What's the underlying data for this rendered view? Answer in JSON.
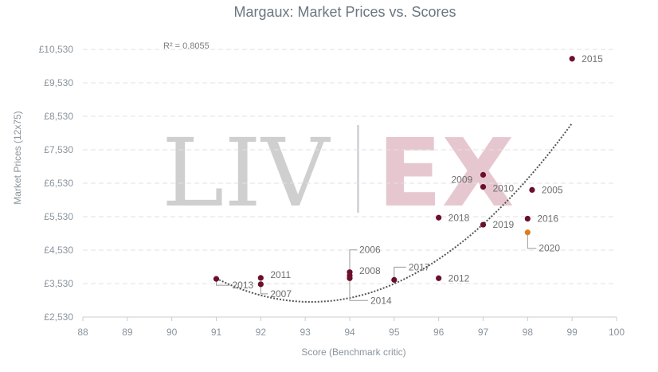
{
  "chart_data": {
    "type": "scatter",
    "title": "Margaux: Market Prices vs. Scores",
    "xlabel": "Score (Benchmark critic)",
    "ylabel": "Market Prices (12x75)",
    "xlim": [
      88,
      100
    ],
    "ylim": [
      2530,
      10530
    ],
    "x_ticks": [
      "88",
      "89",
      "90",
      "91",
      "92",
      "93",
      "94",
      "95",
      "96",
      "97",
      "98",
      "99",
      "100"
    ],
    "y_ticks": [
      "£2,530",
      "£3,530",
      "£4,530",
      "£5,530",
      "£6,530",
      "£7,530",
      "£8,530",
      "£9,530",
      "£10,530"
    ],
    "grid": "horizontal dashed",
    "legend": "none",
    "annotation": "R² = 0.8055",
    "watermark": {
      "left": "LIV",
      "right": "EX"
    },
    "trendline": {
      "type": "polynomial",
      "x": [
        91,
        99
      ],
      "coeffs_quadratic": [
        155,
        -28870,
        1347300
      ]
    },
    "points": [
      {
        "label": "2015",
        "x": 99,
        "y": 10250,
        "highlight": false
      },
      {
        "label": "2009",
        "x": 97,
        "y": 6780,
        "highlight": false
      },
      {
        "label": "2010",
        "x": 97,
        "y": 6420,
        "highlight": false
      },
      {
        "label": "2005",
        "x": 98.1,
        "y": 6330,
        "highlight": false
      },
      {
        "label": "2018",
        "x": 96,
        "y": 5500,
        "highlight": false
      },
      {
        "label": "2016",
        "x": 98,
        "y": 5470,
        "highlight": false
      },
      {
        "label": "2019",
        "x": 97,
        "y": 5290,
        "highlight": false
      },
      {
        "label": "2020",
        "x": 98,
        "y": 5060,
        "highlight": true
      },
      {
        "label": "2006",
        "x": 94,
        "y": 3870,
        "highlight": false
      },
      {
        "label": "2008",
        "x": 94,
        "y": 3770,
        "highlight": false
      },
      {
        "label": "2014",
        "x": 94,
        "y": 3690,
        "highlight": false
      },
      {
        "label": "2017",
        "x": 95,
        "y": 3640,
        "highlight": false
      },
      {
        "label": "2012",
        "x": 96,
        "y": 3690,
        "highlight": false
      },
      {
        "label": "2011",
        "x": 92,
        "y": 3700,
        "highlight": false
      },
      {
        "label": "2007",
        "x": 92,
        "y": 3510,
        "highlight": false
      },
      {
        "label": "2013",
        "x": 91,
        "y": 3670,
        "highlight": false
      }
    ],
    "colors": {
      "point": "#6b0f2a",
      "highlight": "#e07b1e",
      "grid": "#e1e1e1",
      "trend": "#555555"
    }
  }
}
